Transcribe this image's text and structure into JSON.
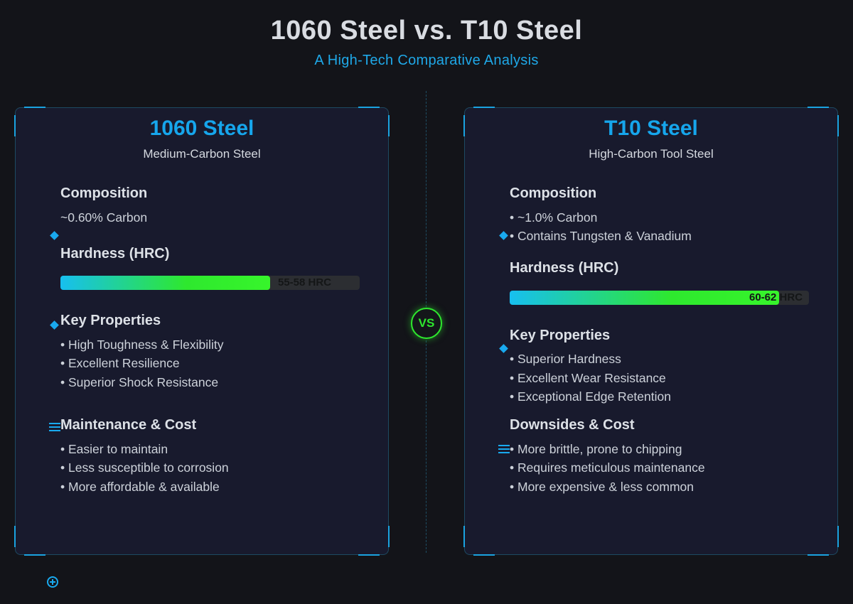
{
  "header": {
    "title": "1060 Steel vs. T10 Steel",
    "subtitle": "A High-Tech Comparative Analysis"
  },
  "vs_label": "VS",
  "left": {
    "title": "1060 Steel",
    "subtitle": "Medium-Carbon Steel",
    "composition_heading": "Composition",
    "composition": [
      "~0.60% Carbon"
    ],
    "hardness_heading": "Hardness (HRC)",
    "hardness_label": "55-58 HRC",
    "hardness_fill_fraction": 0.7,
    "properties_heading": "Key Properties",
    "properties": [
      "• High Toughness & Flexibility",
      "• Excellent Resilience",
      "• Superior Shock Resistance"
    ],
    "cost_heading": "Maintenance & Cost",
    "cost": [
      "• Easier to maintain",
      "• Less susceptible to corrosion",
      "• More affordable & available"
    ]
  },
  "right": {
    "title": "T10 Steel",
    "subtitle": "High-Carbon Tool Steel",
    "composition_heading": "Composition",
    "composition": [
      "• ~1.0% Carbon",
      "• Contains Tungsten & Vanadium"
    ],
    "hardness_heading": "Hardness (HRC)",
    "hardness_label": "60-62 HRC",
    "hardness_fill_fraction": 0.9,
    "properties_heading": "Key Properties",
    "properties": [
      "• Superior Hardness",
      "• Excellent Wear Resistance",
      "• Exceptional Edge Retention"
    ],
    "cost_heading": "Downsides & Cost",
    "cost": [
      "• More brittle, prone to chipping",
      "• Requires meticulous maintenance",
      "• More expensive & less common"
    ]
  },
  "colors": {
    "accent": "#19a9ee",
    "vs_green": "#2ee82e",
    "background": "#131419",
    "panel": "#181a2d"
  }
}
